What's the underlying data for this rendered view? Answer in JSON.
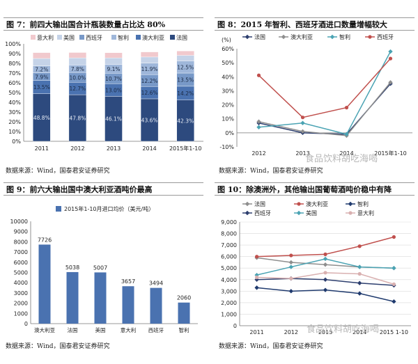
{
  "colors": {
    "fr": "#2d4a7e",
    "au": "#4a72b0",
    "es": "#7899c8",
    "cl": "#9fb7da",
    "us": "#c5d3e8",
    "it": "#f1c9cd",
    "line_fr": "#2c3e6e",
    "line_au": "#c0504d",
    "line_es": "#8e8e8e",
    "line_cl": "#1f3a6e",
    "line_us": "#4aa3b3",
    "line_it": "#d9b0b0",
    "watermark": "#b8b8b8"
  },
  "fig7": {
    "title": "图 7：前四大输出国合计瓶装数量占比达 80%",
    "source": "数据来源：Wind，国泰君安证券研究",
    "chart_data": {
      "type": "bar",
      "stacked": true,
      "categories": [
        "2011",
        "2012",
        "2013",
        "2014",
        "2015年1-10"
      ],
      "ylim": [
        0,
        100
      ],
      "yticks": [
        "0%",
        "10%",
        "20%",
        "30%",
        "40%",
        "50%",
        "60%",
        "70%",
        "80%",
        "90%",
        "100%"
      ],
      "legend": [
        "意大利",
        "美国",
        "西班牙",
        "智利",
        "澳大利亚",
        "法国"
      ],
      "series": [
        {
          "name": "法国",
          "key": "fr",
          "values": [
            48.8,
            47.8,
            46.1,
            43.6,
            42.3
          ],
          "labels": [
            "48.8%",
            "47.8%",
            "46.1%",
            "43.6%",
            "42.3%"
          ]
        },
        {
          "name": "澳大利亚",
          "key": "au",
          "values": [
            13.5,
            12.7,
            13.0,
            12.6,
            14.2
          ],
          "labels": [
            "13.5%",
            "12.7%",
            "13.0%",
            "12.6%",
            "14.2%"
          ]
        },
        {
          "name": "西班牙",
          "key": "es",
          "values": [
            7.9,
            10.0,
            10.7,
            12.2,
            13.5
          ],
          "labels": [
            "7.9%",
            "10.0%",
            "10.7%",
            "12.2%",
            "13.5%"
          ]
        },
        {
          "name": "智利",
          "key": "cl",
          "values": [
            7.2,
            7.8,
            9.1,
            11.9,
            12.5
          ],
          "labels": [
            "7.2%",
            "7.8%",
            "9.1%",
            "11.9%",
            "12.5%"
          ]
        },
        {
          "name": "美国",
          "key": "us",
          "values": [
            7.6,
            7.3,
            6.6,
            6.2,
            5.7
          ]
        },
        {
          "name": "意大利",
          "key": "it",
          "values": [
            6.0,
            5.5,
            5.4,
            5.2,
            4.5
          ]
        }
      ]
    }
  },
  "fig8": {
    "title": "图 8：2015 年智利、西班牙酒进口数量增幅较大",
    "source": "数据来源：Wind，国泰君安证券研究",
    "unit": "(%)",
    "chart_data": {
      "type": "line",
      "categories": [
        "2012",
        "2013",
        "2014",
        "2015年1-10"
      ],
      "ylim": [
        -10,
        60
      ],
      "yticks": [
        "-10%",
        "0%",
        "10%",
        "20%",
        "30%",
        "40%",
        "50%",
        "60%"
      ],
      "legend": [
        "法国",
        "澳大利亚",
        "智利",
        "西班牙"
      ],
      "series": [
        {
          "name": "法国",
          "key": "line_fr",
          "marker": "diamond",
          "values": [
            7,
            0,
            -1,
            35
          ]
        },
        {
          "name": "澳大利亚",
          "key": "line_es",
          "marker": "diamond",
          "values": [
            8,
            1,
            -2,
            36
          ]
        },
        {
          "name": "智利",
          "key": "line_us",
          "marker": "diamond",
          "values": [
            4,
            7,
            -1,
            58
          ]
        },
        {
          "name": "西班牙",
          "key": "line_au",
          "marker": "circle",
          "values": [
            41,
            11,
            18,
            53
          ]
        }
      ]
    }
  },
  "fig9": {
    "title": "图 9：前六大输出国中澳大利亚酒吨价最高",
    "source": "数据来源：Wind，国泰君安证券研究",
    "chart_data": {
      "type": "bar",
      "legend": [
        "2015年1-10月进口均价（美元/吨）"
      ],
      "categories": [
        "澳大利亚",
        "法国",
        "美国",
        "意大利",
        "西班牙",
        "智利"
      ],
      "values": [
        7726,
        5038,
        5007,
        3657,
        3494,
        2060
      ],
      "labels": [
        "7726",
        "5038",
        "5007",
        "3657",
        "3494",
        "2060"
      ],
      "ylim": [
        0,
        10000
      ],
      "yticks": [
        "0",
        "1000",
        "2000",
        "3000",
        "4000",
        "5000",
        "6000",
        "7000",
        "8000",
        "9000",
        "10000"
      ]
    }
  },
  "fig10": {
    "title": "图 10：除澳洲外，其他输出国葡萄酒吨价稳中有降",
    "source": "数据来源：Wind，国泰君安证券研究",
    "chart_data": {
      "type": "line",
      "categories": [
        "2011",
        "2012",
        "2013",
        "2014",
        "2015 1-10"
      ],
      "ylim": [
        0,
        9000
      ],
      "yticks": [
        "0",
        "1,000",
        "2,000",
        "3,000",
        "4,000",
        "5,000",
        "6,000",
        "7,000",
        "8,000",
        "9,000"
      ],
      "legend": [
        "法国",
        "澳大利亚",
        "智利",
        "西班牙",
        "美国",
        "意大利"
      ],
      "series": [
        {
          "name": "法国",
          "key": "line_es",
          "marker": "diamond",
          "values": [
            5900,
            5500,
            5300,
            5100,
            5000
          ]
        },
        {
          "name": "澳大利亚",
          "key": "line_au",
          "marker": "circle",
          "values": [
            6000,
            6100,
            6200,
            6900,
            7700
          ]
        },
        {
          "name": "智利",
          "key": "line_cl",
          "marker": "diamond",
          "values": [
            3300,
            3000,
            3100,
            2800,
            2100
          ]
        },
        {
          "name": "西班牙",
          "key": "line_fr",
          "marker": "diamond",
          "values": [
            4000,
            4100,
            4000,
            3700,
            3500
          ]
        },
        {
          "name": "美国",
          "key": "line_us",
          "marker": "diamond",
          "values": [
            4400,
            5100,
            5800,
            5100,
            5000
          ]
        },
        {
          "name": "意大利",
          "key": "line_it",
          "marker": "circle",
          "values": [
            4200,
            4100,
            4600,
            4500,
            3600
          ]
        }
      ]
    }
  },
  "watermark_text": "食品饮料胡吃海喝"
}
